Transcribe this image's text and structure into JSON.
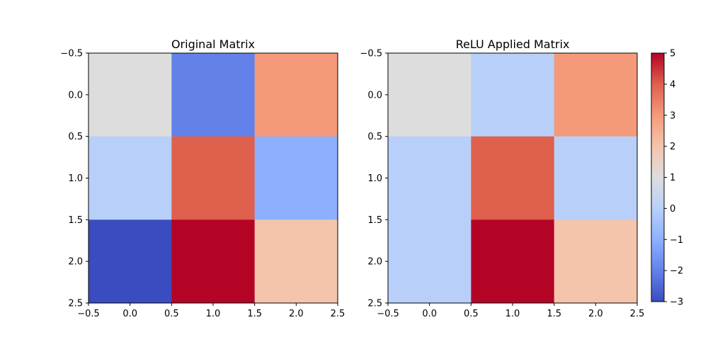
{
  "chart_data": [
    {
      "type": "heatmap",
      "title": "Original Matrix",
      "values": [
        [
          1,
          -2,
          3
        ],
        [
          0,
          4,
          -1
        ],
        [
          -3,
          5,
          2
        ]
      ],
      "xlim": [
        -0.5,
        2.5
      ],
      "ylim": [
        2.5,
        -0.5
      ],
      "xticks": [
        "−0.5",
        "0.0",
        "0.5",
        "1.0",
        "1.5",
        "2.0",
        "2.5"
      ],
      "yticks": [
        "−0.5",
        "0.0",
        "0.5",
        "1.0",
        "1.5",
        "2.0",
        "2.5"
      ],
      "grid": false
    },
    {
      "type": "heatmap",
      "title": "ReLU Applied Matrix",
      "values": [
        [
          1,
          0,
          3
        ],
        [
          0,
          4,
          0
        ],
        [
          0,
          5,
          2
        ]
      ],
      "xlim": [
        -0.5,
        2.5
      ],
      "ylim": [
        2.5,
        -0.5
      ],
      "xticks": [
        "−0.5",
        "0.0",
        "0.5",
        "1.0",
        "1.5",
        "2.0",
        "2.5"
      ],
      "yticks": [
        "−0.5",
        "0.0",
        "0.5",
        "1.0",
        "1.5",
        "2.0",
        "2.5"
      ],
      "grid": false
    }
  ],
  "colorbar": {
    "colormap": "coolwarm",
    "vmin": -3,
    "vmax": 5,
    "ticks": [
      "−3",
      "−2",
      "−1",
      "0",
      "1",
      "2",
      "3",
      "4",
      "5"
    ]
  }
}
